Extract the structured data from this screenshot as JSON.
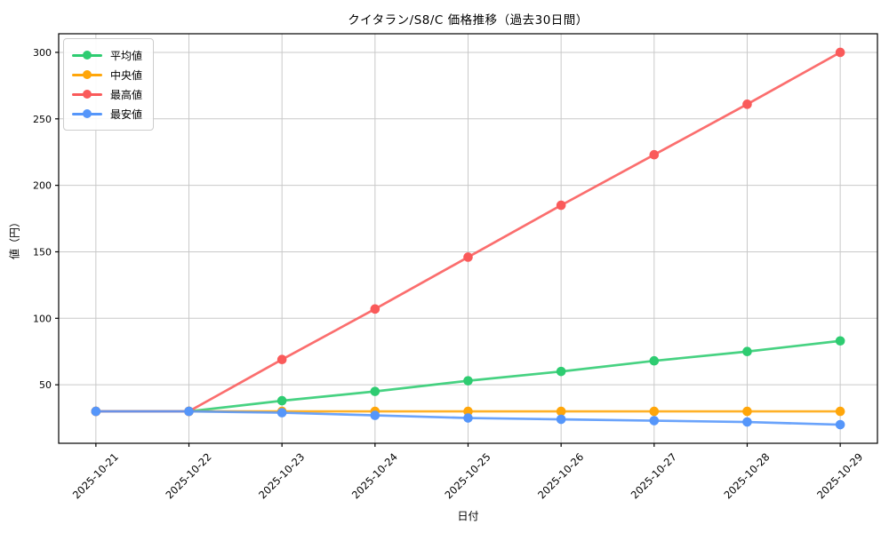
{
  "chart_data": {
    "type": "line",
    "title": "クイタラン/S8/C 価格推移（過去30日間）",
    "xlabel": "日付",
    "ylabel": "値（円）",
    "categories": [
      "2025-10-21",
      "2025-10-22",
      "2025-10-23",
      "2025-10-24",
      "2025-10-25",
      "2025-10-26",
      "2025-10-27",
      "2025-10-28",
      "2025-10-29"
    ],
    "yticks": [
      50,
      100,
      150,
      200,
      250,
      300
    ],
    "ylim": [
      6,
      314
    ],
    "grid": true,
    "legend_position": "upper left",
    "series": [
      {
        "name": "平均値",
        "color": "#2ecc71",
        "values": [
          30,
          30,
          38,
          45,
          53,
          60,
          68,
          75,
          83
        ]
      },
      {
        "name": "中央値",
        "color": "#ffa60a",
        "values": [
          30,
          30,
          30,
          30,
          30,
          30,
          30,
          30,
          30
        ]
      },
      {
        "name": "最高値",
        "color": "#fa5a5a",
        "values": [
          30,
          30,
          69,
          107,
          146,
          185,
          223,
          261,
          300
        ]
      },
      {
        "name": "最安値",
        "color": "#5596fa",
        "values": [
          30,
          30,
          29,
          27,
          25,
          24,
          23,
          22,
          20
        ]
      }
    ],
    "colors": {
      "grid": "#c9c9c9",
      "spine": "#000000",
      "background": "#ffffff"
    }
  }
}
